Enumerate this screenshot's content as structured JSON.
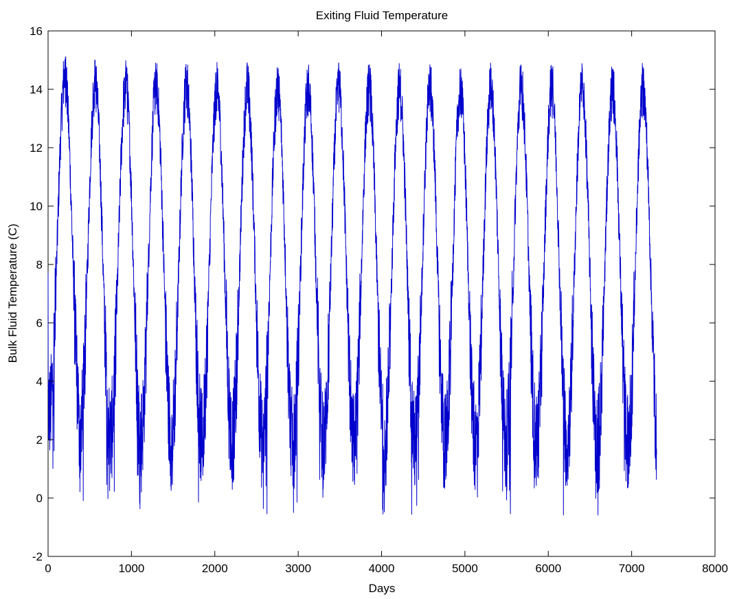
{
  "chart_data": {
    "type": "line",
    "title": "Exiting Fluid Temperature",
    "xlabel": "Days",
    "ylabel": "Bulk Fluid Temperature (C)",
    "xlim": [
      0,
      8000
    ],
    "ylim": [
      -2,
      16
    ],
    "xticks": [
      "0",
      "1000",
      "2000",
      "3000",
      "4000",
      "5000",
      "6000",
      "7000",
      "8000"
    ],
    "yticks": [
      "-2",
      "0",
      "2",
      "4",
      "6",
      "8",
      "10",
      "12",
      "14",
      "16"
    ],
    "grid": false,
    "legend": "none",
    "series": [
      {
        "color": "#0000cc",
        "x_start": 0,
        "x_end": 7300,
        "period_days": 365,
        "mean": 7,
        "amplitude": 7,
        "peak_values": [
          15.2,
          15.0,
          14.9,
          14.9,
          14.9,
          14.8,
          14.8,
          14.8,
          14.8,
          14.8,
          14.8,
          14.8,
          14.8,
          14.8,
          14.8,
          14.8,
          14.8,
          14.8,
          14.8,
          14.8
        ],
        "min_values": [
          0.5,
          -0.3,
          -0.4,
          -0.4,
          -0.5,
          -0.5,
          -0.5,
          -0.6,
          -0.6,
          -0.6,
          -0.6,
          -0.6,
          -0.6,
          -0.6,
          -0.6,
          -0.6,
          -0.6,
          -0.6,
          -0.6,
          -0.6
        ],
        "end_value": 1.5
      }
    ]
  }
}
